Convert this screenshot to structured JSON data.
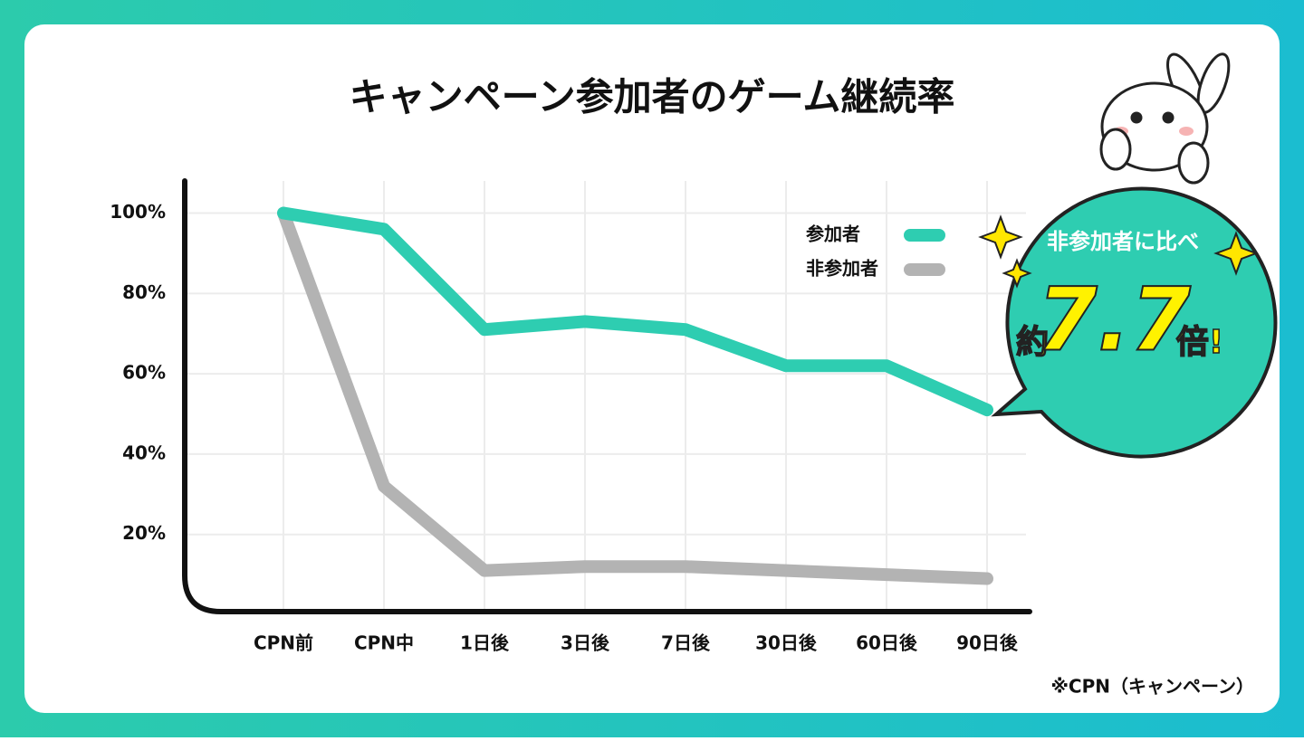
{
  "chart_data": {
    "type": "line",
    "title": "キャンペーン参加者のゲーム継続率",
    "categories": [
      "CPN前",
      "CPN中",
      "1日後",
      "3日後",
      "7日後",
      "30日後",
      "60日後",
      "90日後"
    ],
    "series": [
      {
        "name": "参加者",
        "color": "#2ecdb1",
        "values": [
          100,
          96,
          71,
          73,
          71,
          62,
          62,
          51
        ]
      },
      {
        "name": "非参加者",
        "color": "#b3b3b3",
        "values": [
          100,
          32,
          11,
          12,
          12,
          11,
          10,
          9
        ]
      }
    ],
    "ylim": [
      0,
      108
    ],
    "yticks": [
      {
        "value": 20,
        "label": "20%"
      },
      {
        "value": 40,
        "label": "40%"
      },
      {
        "value": 60,
        "label": "60%"
      },
      {
        "value": 80,
        "label": "80%"
      },
      {
        "value": 100,
        "label": "100%"
      }
    ],
    "grid": true,
    "legend": "upper right",
    "callout": {
      "top": "非参加者に比べ",
      "prefix": "約",
      "number": "7.7",
      "suffix": "倍!"
    },
    "footnote": "※CPN（キャンペーン）"
  }
}
